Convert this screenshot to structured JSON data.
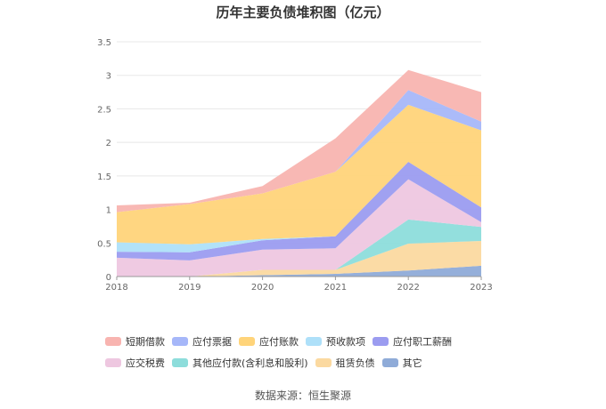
{
  "chart_data": {
    "type": "area",
    "title": "历年主要负债堆积图（亿元）",
    "categories": [
      "2018",
      "2019",
      "2020",
      "2021",
      "2022",
      "2023"
    ],
    "ylim": [
      0,
      3.5
    ],
    "yticks": [
      "0",
      "0.5",
      "1",
      "1.5",
      "2",
      "2.5",
      "3",
      "3.5"
    ],
    "grid": true,
    "legend_position": "bottom",
    "stacked": true,
    "series": [
      {
        "name": "其它",
        "color": "#8fabd8",
        "values": [
          0,
          0,
          0.02,
          0.04,
          0.09,
          0.16
        ]
      },
      {
        "name": "租赁负债",
        "color": "#fbd9a0",
        "values": [
          0,
          0,
          0.08,
          0.06,
          0.4,
          0.37
        ]
      },
      {
        "name": "其他应付款(含利息和股利)",
        "color": "#8ddddb",
        "values": [
          0,
          0,
          0,
          0,
          0.36,
          0.21
        ]
      },
      {
        "name": "应交税费",
        "color": "#eec7e0",
        "values": [
          0.28,
          0.24,
          0.3,
          0.32,
          0.6,
          0.07
        ]
      },
      {
        "name": "应付职工薪酬",
        "color": "#9b9cf0",
        "values": [
          0.09,
          0.12,
          0.14,
          0.18,
          0.26,
          0.22
        ]
      },
      {
        "name": "预收款项",
        "color": "#aee0f9",
        "values": [
          0.14,
          0.12,
          0.02,
          0,
          0,
          0
        ]
      },
      {
        "name": "应付账款",
        "color": "#ffd47a",
        "values": [
          0.45,
          0.6,
          0.68,
          0.96,
          0.85,
          1.15
        ]
      },
      {
        "name": "应付票据",
        "color": "#a6b7f9",
        "values": [
          0,
          0,
          0,
          0,
          0.22,
          0.13
        ]
      },
      {
        "name": "短期借款",
        "color": "#f8b4b0",
        "values": [
          0.1,
          0.02,
          0.11,
          0.5,
          0.3,
          0.44
        ]
      }
    ]
  },
  "legend_order": [
    "短期借款",
    "应付票据",
    "应付账款",
    "预收款项",
    "应付职工薪酬",
    "应交税费",
    "其他应付款(含利息和股利)",
    "租赁负债",
    "其它"
  ],
  "source": "数据来源：恒生聚源"
}
